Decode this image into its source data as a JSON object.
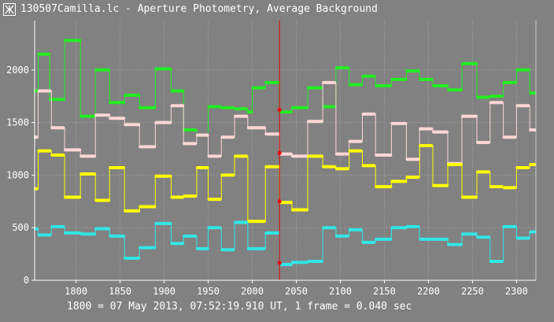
{
  "window": {
    "title": "130507Camilla.lc - Aperture Photometry, Average Background",
    "icon": "app-logo-icon"
  },
  "status": {
    "text": "1800 = 07 May 2013, 07:52:19.910 UT, 1 frame = 0.040 sec"
  },
  "colors": {
    "background": "#818181",
    "axis": "#ffffff",
    "grid": "#a6a6a6",
    "green": "#22ee22",
    "pink": "#ffd6d6",
    "yellow": "#ffff00",
    "cyan": "#33e6e6",
    "cursor": "#dd0000",
    "cursor_dot": "#ee0000"
  },
  "chart_data": {
    "type": "line",
    "xlim": [
      1753,
      2322
    ],
    "ylim": [
      0,
      2470
    ],
    "xticks": [
      1800,
      1850,
      1900,
      1950,
      2000,
      2050,
      2100,
      2150,
      2200,
      2250,
      2300
    ],
    "yticks": [
      0,
      500,
      1000,
      1500,
      2000
    ],
    "grid": true,
    "cursor": {
      "x": 2031,
      "values": [
        1620,
        1210,
        750,
        165
      ]
    },
    "series": [
      {
        "color": "green",
        "steps": [
          [
            1753,
            1800
          ],
          [
            1757,
            2150
          ],
          [
            1770,
            1720
          ],
          [
            1787,
            2280
          ],
          [
            1805,
            1560
          ],
          [
            1822,
            2000
          ],
          [
            1838,
            1690
          ],
          [
            1855,
            1760
          ],
          [
            1872,
            1640
          ],
          [
            1890,
            2010
          ],
          [
            1908,
            1800
          ],
          [
            1922,
            1430
          ],
          [
            1937,
            1380
          ],
          [
            1950,
            1650
          ],
          [
            1965,
            1640
          ],
          [
            1980,
            1630
          ],
          [
            1995,
            1600
          ],
          [
            2000,
            1830
          ],
          [
            2015,
            1880
          ],
          [
            2031,
            1600
          ],
          [
            2045,
            1640
          ],
          [
            2063,
            1830
          ],
          [
            2080,
            1650
          ],
          [
            2095,
            2020
          ],
          [
            2110,
            1860
          ],
          [
            2125,
            1940
          ],
          [
            2140,
            1850
          ],
          [
            2158,
            1910
          ],
          [
            2175,
            1990
          ],
          [
            2190,
            1910
          ],
          [
            2205,
            1850
          ],
          [
            2222,
            1810
          ],
          [
            2238,
            2060
          ],
          [
            2255,
            1740
          ],
          [
            2270,
            1750
          ],
          [
            2285,
            1880
          ],
          [
            2300,
            2000
          ],
          [
            2315,
            1780
          ]
        ]
      },
      {
        "color": "pink",
        "steps": [
          [
            1753,
            1360
          ],
          [
            1757,
            1800
          ],
          [
            1772,
            1450
          ],
          [
            1787,
            1240
          ],
          [
            1805,
            1180
          ],
          [
            1822,
            1570
          ],
          [
            1838,
            1540
          ],
          [
            1855,
            1480
          ],
          [
            1872,
            1270
          ],
          [
            1890,
            1500
          ],
          [
            1908,
            1660
          ],
          [
            1922,
            1300
          ],
          [
            1937,
            1380
          ],
          [
            1950,
            1180
          ],
          [
            1965,
            1360
          ],
          [
            1980,
            1560
          ],
          [
            1995,
            1450
          ],
          [
            2015,
            1390
          ],
          [
            2031,
            1200
          ],
          [
            2045,
            1180
          ],
          [
            2063,
            1510
          ],
          [
            2080,
            1880
          ],
          [
            2095,
            1200
          ],
          [
            2110,
            1320
          ],
          [
            2125,
            1580
          ],
          [
            2140,
            1190
          ],
          [
            2158,
            1490
          ],
          [
            2175,
            1150
          ],
          [
            2190,
            1440
          ],
          [
            2205,
            1410
          ],
          [
            2222,
            1110
          ],
          [
            2238,
            1560
          ],
          [
            2255,
            1310
          ],
          [
            2270,
            1690
          ],
          [
            2285,
            1360
          ],
          [
            2300,
            1660
          ],
          [
            2315,
            1430
          ]
        ]
      },
      {
        "color": "yellow",
        "steps": [
          [
            1753,
            870
          ],
          [
            1757,
            1230
          ],
          [
            1772,
            1190
          ],
          [
            1787,
            790
          ],
          [
            1805,
            1010
          ],
          [
            1822,
            760
          ],
          [
            1838,
            1070
          ],
          [
            1855,
            660
          ],
          [
            1872,
            700
          ],
          [
            1890,
            990
          ],
          [
            1908,
            790
          ],
          [
            1922,
            800
          ],
          [
            1937,
            1070
          ],
          [
            1950,
            770
          ],
          [
            1965,
            1000
          ],
          [
            1980,
            1180
          ],
          [
            1995,
            560
          ],
          [
            2015,
            1080
          ],
          [
            2031,
            740
          ],
          [
            2045,
            670
          ],
          [
            2063,
            1180
          ],
          [
            2080,
            1080
          ],
          [
            2095,
            1060
          ],
          [
            2110,
            1230
          ],
          [
            2125,
            1090
          ],
          [
            2140,
            890
          ],
          [
            2158,
            940
          ],
          [
            2175,
            980
          ],
          [
            2190,
            1280
          ],
          [
            2205,
            900
          ],
          [
            2222,
            1100
          ],
          [
            2238,
            790
          ],
          [
            2255,
            1030
          ],
          [
            2270,
            890
          ],
          [
            2285,
            880
          ],
          [
            2300,
            1070
          ],
          [
            2315,
            1100
          ]
        ]
      },
      {
        "color": "cyan",
        "steps": [
          [
            1753,
            490
          ],
          [
            1757,
            430
          ],
          [
            1772,
            510
          ],
          [
            1787,
            450
          ],
          [
            1805,
            440
          ],
          [
            1822,
            490
          ],
          [
            1838,
            420
          ],
          [
            1855,
            210
          ],
          [
            1872,
            310
          ],
          [
            1890,
            540
          ],
          [
            1908,
            350
          ],
          [
            1922,
            420
          ],
          [
            1937,
            300
          ],
          [
            1950,
            500
          ],
          [
            1965,
            290
          ],
          [
            1980,
            550
          ],
          [
            1995,
            300
          ],
          [
            2015,
            450
          ],
          [
            2031,
            150
          ],
          [
            2045,
            170
          ],
          [
            2063,
            180
          ],
          [
            2080,
            500
          ],
          [
            2095,
            420
          ],
          [
            2110,
            480
          ],
          [
            2125,
            360
          ],
          [
            2140,
            390
          ],
          [
            2158,
            500
          ],
          [
            2175,
            510
          ],
          [
            2190,
            390
          ],
          [
            2205,
            390
          ],
          [
            2222,
            340
          ],
          [
            2238,
            440
          ],
          [
            2255,
            410
          ],
          [
            2270,
            180
          ],
          [
            2285,
            510
          ],
          [
            2300,
            400
          ],
          [
            2315,
            460
          ]
        ]
      }
    ]
  }
}
